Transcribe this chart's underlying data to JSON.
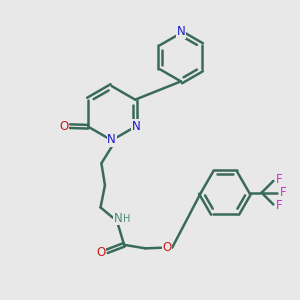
{
  "bg_color": "#e8e8e8",
  "bond_color": "#3a6b5a",
  "n_color": "#1a1acc",
  "o_color": "#cc1a1a",
  "f_color": "#cc33cc",
  "nh_color": "#4a8a7a",
  "lw": 1.8,
  "fs": 8.5,
  "dpi": 100,
  "xlim": [
    0,
    10
  ],
  "ylim": [
    0,
    10
  ],
  "figsize": [
    3.0,
    3.0
  ]
}
